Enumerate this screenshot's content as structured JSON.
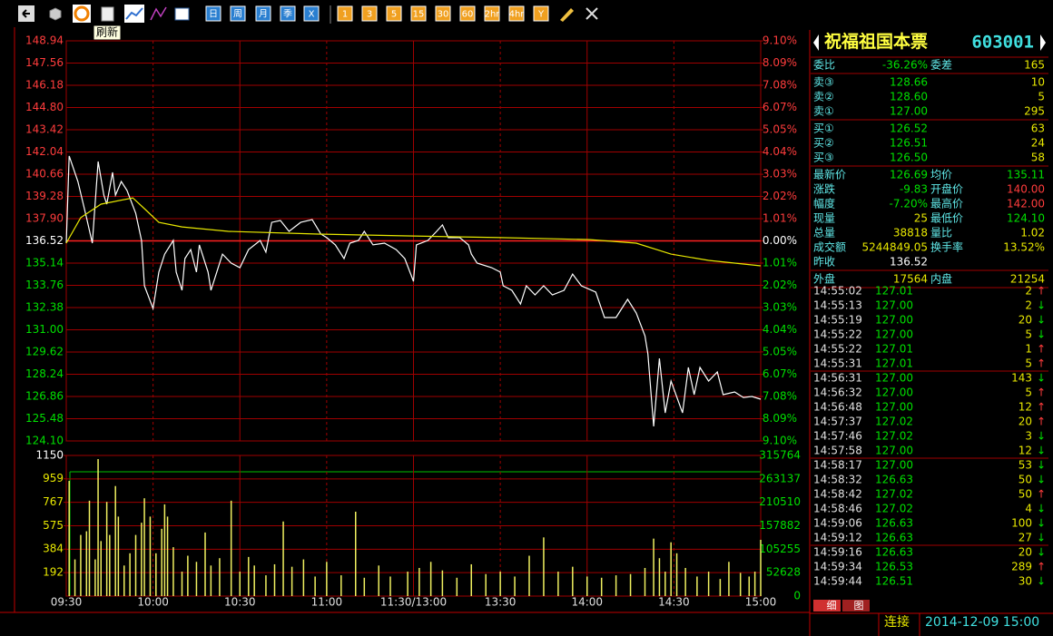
{
  "toolbar": {
    "buttons": [
      "日",
      "周",
      "月",
      "季",
      "X",
      "1",
      "3",
      "5",
      "15",
      "30",
      "60",
      "2hr",
      "4hr",
      "Y"
    ],
    "tooltip": "刷新"
  },
  "chart_data": [
    {
      "type": "line",
      "xlim": [
        0,
        240
      ],
      "ylim": [
        124.1,
        148.94
      ],
      "ref": 136.52,
      "yticks": [
        148.94,
        147.56,
        146.18,
        {
          "value": 144.8,
          "label": "144.80"
        },
        143.42,
        142.04,
        140.66,
        139.28,
        {
          "value": 137.9,
          "label": "137.90"
        },
        136.52,
        135.14,
        133.76,
        132.38,
        {
          "value": 131,
          "label": "131.00"
        },
        129.62,
        128.24,
        126.86,
        125.48,
        {
          "value": 124.1,
          "label": "124.10"
        }
      ],
      "y2lim": [
        -9.1,
        9.1
      ],
      "y2ticks": [
        {
          "value": 9.1,
          "label": "9.10%"
        },
        {
          "value": 8.09,
          "label": "8.09%"
        },
        {
          "value": 7.08,
          "label": "7.08%"
        },
        {
          "value": 6.07,
          "label": "6.07%"
        },
        {
          "value": 5.05,
          "label": "5.05%"
        },
        {
          "value": 4.04,
          "label": "4.04%"
        },
        {
          "value": 3.03,
          "label": "3.03%"
        },
        {
          "value": 2.02,
          "label": "2.02%"
        },
        {
          "value": 1.01,
          "label": "1.01%"
        },
        {
          "value": 0,
          "label": "0.00%"
        },
        {
          "value": -1.01,
          "label": "1.01%"
        },
        {
          "value": -2.02,
          "label": "2.02%"
        },
        {
          "value": -3.03,
          "label": "3.03%"
        },
        {
          "value": -4.04,
          "label": "4.04%"
        },
        {
          "value": -5.05,
          "label": "5.05%"
        },
        {
          "value": -6.07,
          "label": "6.07%"
        },
        {
          "value": -7.08,
          "label": "7.08%"
        },
        {
          "value": -8.09,
          "label": "8.09%"
        },
        {
          "value": -9.1,
          "label": "9.10%"
        }
      ],
      "series": [
        {
          "color": "#ffffff",
          "x": [
            0,
            1,
            4,
            7,
            9,
            11,
            13,
            14,
            16,
            17,
            19,
            21,
            24,
            26,
            27,
            30,
            32,
            34,
            37,
            38,
            40,
            41,
            43,
            45,
            46,
            49,
            50,
            52,
            54,
            57,
            60,
            63,
            67,
            69,
            71,
            74,
            77,
            81,
            85,
            88,
            90,
            93,
            96,
            98,
            101,
            103,
            106,
            110,
            114,
            117,
            120,
            121,
            125,
            128,
            130,
            132,
            136,
            139,
            140,
            142,
            147,
            150,
            151,
            154,
            157,
            159,
            162,
            165,
            168,
            172,
            175,
            178,
            183,
            186,
            190,
            194,
            197,
            200,
            201,
            203,
            205,
            207,
            209,
            213,
            215,
            217,
            219,
            222,
            225,
            227,
            231,
            234,
            237,
            240
          ],
          "values": [
            136.38,
            141.79,
            140.21,
            137.96,
            136.38,
            141.45,
            139.36,
            138.8,
            140.77,
            139.36,
            140.21,
            139.65,
            138.24,
            136.55,
            133.73,
            132.32,
            134.58,
            135.7,
            136.55,
            134.58,
            133.45,
            135.42,
            135.98,
            134.58,
            136.27,
            134.58,
            133.45,
            134.58,
            135.7,
            135.14,
            134.86,
            135.98,
            136.55,
            135.82,
            137.67,
            137.79,
            137.11,
            137.67,
            137.84,
            136.94,
            136.72,
            136.27,
            135.42,
            136.38,
            136.55,
            137.11,
            136.27,
            136.38,
            135.98,
            135.42,
            134.01,
            136.27,
            136.55,
            137.11,
            137.51,
            136.72,
            136.72,
            136.27,
            135.7,
            135.14,
            134.86,
            134.58,
            133.73,
            133.45,
            132.6,
            133.73,
            133.17,
            133.73,
            133.17,
            133.45,
            134.46,
            133.73,
            133.34,
            131.76,
            131.76,
            132.89,
            132.04,
            130.63,
            129.51,
            125,
            129.22,
            125.84,
            127.82,
            125.84,
            128.66,
            126.97,
            128.66,
            127.82,
            128.38,
            126.97,
            127.14,
            126.8,
            126.86,
            126.69
          ]
        },
        {
          "color": "#e8e800",
          "x": [
            0,
            5,
            12,
            23,
            27,
            32,
            40,
            56,
            87,
            118,
            150,
            181,
            197,
            209,
            222,
            240
          ],
          "values": [
            136.38,
            137.96,
            138.8,
            139.19,
            138.52,
            137.67,
            137.39,
            137.11,
            136.94,
            136.83,
            136.72,
            136.6,
            136.38,
            135.7,
            135.31,
            134.97
          ]
        }
      ]
    },
    {
      "type": "bar",
      "color": "#f0f060",
      "xlim": [
        0,
        240
      ],
      "xticks": [
        {
          "value": 0,
          "label": "09:30"
        },
        {
          "value": 30,
          "label": "10:00"
        },
        {
          "value": 60,
          "label": "10:30"
        },
        {
          "value": 90,
          "label": "11:00"
        },
        {
          "value": 120,
          "label": "11:30/13:00"
        },
        {
          "value": 150,
          "label": "13:30"
        },
        {
          "value": 180,
          "label": "14:00"
        },
        {
          "value": 210,
          "label": "14:30"
        },
        {
          "value": 240,
          "label": "15:00"
        }
      ],
      "ylim": [
        0,
        1150
      ],
      "yticks": [
        192,
        384,
        575,
        767,
        959,
        1150
      ],
      "y2lim": [
        0,
        315764
      ],
      "y2ticks": [
        0,
        52628,
        105255,
        157882,
        210510,
        263137,
        315764
      ],
      "x": [
        1,
        3,
        5,
        7,
        8,
        10,
        11,
        12,
        14,
        15,
        17,
        18,
        20,
        22,
        24,
        26,
        27,
        29,
        31,
        33,
        34,
        35,
        37,
        40,
        42,
        45,
        48,
        50,
        53,
        57,
        60,
        63,
        65,
        69,
        72,
        75,
        78,
        82,
        86,
        90,
        95,
        100,
        103,
        108,
        112,
        118,
        122,
        126,
        130,
        135,
        140,
        145,
        150,
        155,
        160,
        165,
        170,
        175,
        180,
        185,
        190,
        195,
        200,
        203,
        205,
        207,
        209,
        211,
        214,
        218,
        222,
        226,
        229,
        233,
        236,
        238,
        240
      ],
      "values": [
        942,
        300,
        500,
        530,
        780,
        300,
        1120,
        450,
        770,
        500,
        900,
        650,
        250,
        350,
        500,
        600,
        800,
        650,
        350,
        550,
        750,
        650,
        400,
        200,
        330,
        280,
        520,
        250,
        310,
        780,
        200,
        320,
        250,
        170,
        260,
        610,
        240,
        300,
        160,
        280,
        170,
        690,
        150,
        250,
        160,
        200,
        230,
        280,
        210,
        150,
        260,
        180,
        200,
        160,
        330,
        480,
        200,
        240,
        160,
        150,
        170,
        180,
        230,
        470,
        310,
        200,
        440,
        350,
        230,
        160,
        200,
        140,
        280,
        190,
        160,
        200,
        460
      ]
    }
  ],
  "quote": {
    "name": "祝福祖国本票",
    "code": "603001",
    "groups": [
      [
        [
          "委比",
          "-36.26%",
          "委差",
          "165"
        ]
      ],
      [
        [
          "卖③",
          "128.66",
          "10"
        ],
        [
          "卖②",
          "128.60",
          "5"
        ],
        [
          "卖①",
          "127.00",
          "295"
        ]
      ],
      [
        [
          "买①",
          "126.52",
          "63"
        ],
        [
          "买②",
          "126.51",
          "24"
        ],
        [
          "买③",
          "126.50",
          "58"
        ]
      ],
      [
        [
          "最新价",
          "126.69",
          "均价",
          "135.11"
        ],
        [
          "涨跌",
          "-9.83",
          "开盘价",
          "140.00"
        ],
        [
          "幅度",
          "-7.20%",
          "最高价",
          "142.00"
        ],
        [
          "现量",
          "25",
          "最低价",
          "124.10"
        ],
        [
          "总量",
          "38818",
          "量比",
          "1.02"
        ],
        [
          "成交额",
          "5244849.05",
          "换手率",
          "13.52%"
        ],
        [
          "昨收",
          "136.52"
        ]
      ],
      [
        [
          "外盘",
          "17564",
          "内盘",
          "21254"
        ]
      ]
    ]
  },
  "trades": [
    [
      "14:55:02",
      "127.01",
      "2",
      "↑"
    ],
    [
      "14:55:13",
      "127.00",
      "2",
      "↓"
    ],
    [
      "14:55:19",
      "127.00",
      "20",
      "↓"
    ],
    [
      "14:55:22",
      "127.00",
      "5",
      "↓"
    ],
    [
      "14:55:22",
      "127.01",
      "1",
      "↑"
    ],
    [
      "14:55:31",
      "127.01",
      "5",
      "↑"
    ],
    [
      "14:56:31",
      "127.00",
      "143",
      "↓"
    ],
    [
      "14:56:32",
      "127.00",
      "5",
      "↑"
    ],
    [
      "14:56:48",
      "127.00",
      "12",
      "↑"
    ],
    [
      "14:57:37",
      "127.02",
      "20",
      "↑"
    ],
    [
      "14:57:46",
      "127.02",
      "3",
      "↓"
    ],
    [
      "14:57:58",
      "127.00",
      "12",
      "↓"
    ],
    [
      "14:58:17",
      "127.00",
      "53",
      "↓"
    ],
    [
      "14:58:32",
      "126.63",
      "50",
      "↓"
    ],
    [
      "14:58:42",
      "127.02",
      "50",
      "↑"
    ],
    [
      "14:58:46",
      "127.02",
      "4",
      "↓"
    ],
    [
      "14:59:06",
      "126.63",
      "100",
      "↓"
    ],
    [
      "14:59:12",
      "126.63",
      "27",
      "↓"
    ],
    [
      "14:59:16",
      "126.63",
      "20",
      "↓"
    ],
    [
      "14:59:34",
      "126.53",
      "289",
      "↑"
    ],
    [
      "14:59:44",
      "126.51",
      "30",
      "↓"
    ]
  ],
  "tabs": [
    "细",
    "图"
  ],
  "status": {
    "connection": "连接",
    "datetime": "2014-12-09 15:00"
  }
}
